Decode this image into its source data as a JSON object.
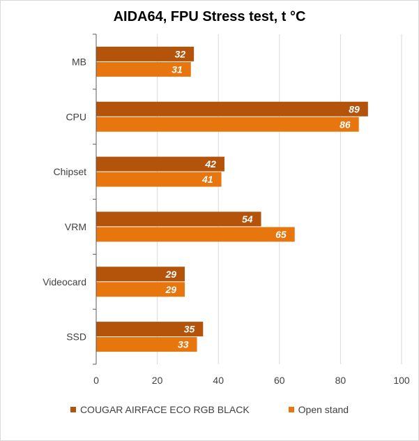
{
  "chart_data": {
    "type": "bar",
    "orientation": "horizontal",
    "title": "AIDA64, FPU Stress test, t °C",
    "categories": [
      "MB",
      "CPU",
      "Chipset",
      "VRM",
      "Videocard",
      "SSD"
    ],
    "series": [
      {
        "name": "COUGAR AIRFACE ECO RGB BLACK",
        "values": [
          32,
          89,
          42,
          54,
          29,
          35
        ],
        "color": "#B4540B"
      },
      {
        "name": "Open stand",
        "values": [
          31,
          86,
          41,
          65,
          29,
          33
        ],
        "color": "#E8760F"
      }
    ],
    "xlim": [
      0,
      100
    ],
    "xticks": [
      "0",
      "20",
      "40",
      "60",
      "80",
      "100"
    ],
    "grid": true,
    "legend_position": "bottom"
  }
}
